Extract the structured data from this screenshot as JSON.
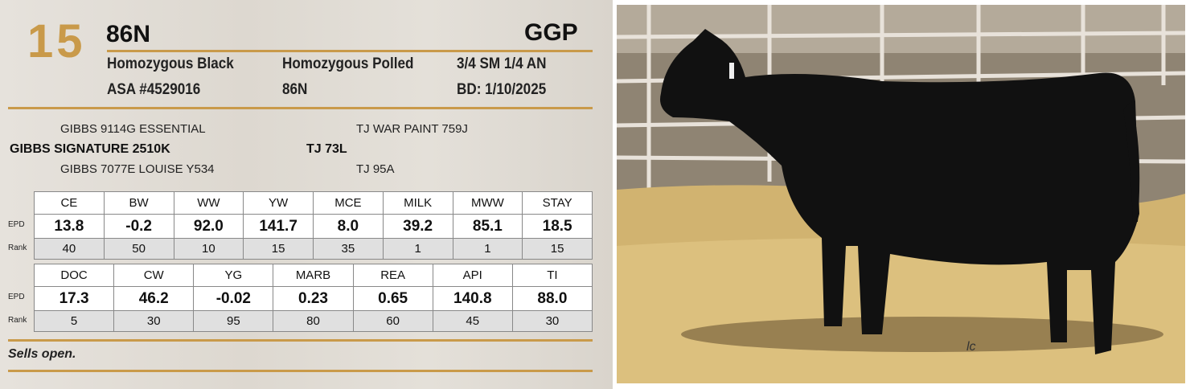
{
  "lot": "15",
  "name": "86N",
  "logo": "GGP",
  "details": [
    [
      "Homozygous Black",
      "Homozygous Polled",
      "3/4 SM 1/4 AN"
    ],
    [
      "ASA #4529016",
      "86N",
      "BD: 1/10/2025"
    ]
  ],
  "pedigree": {
    "sire": {
      "sire": "GIBBS 9114G ESSENTIAL",
      "name": "GIBBS SIGNATURE 2510K",
      "dam": "GIBBS 7077E LOUISE Y534"
    },
    "dam": {
      "sire": "TJ WAR PAINT 759J",
      "name": "TJ 73L",
      "dam": "TJ 95A"
    }
  },
  "epd_tables": [
    {
      "headers": [
        "CE",
        "BW",
        "WW",
        "YW",
        "MCE",
        "MILK",
        "MWW",
        "STAY"
      ],
      "row_labels": [
        "EPD",
        "Rank"
      ],
      "epd": [
        "13.8",
        "-0.2",
        "92.0",
        "141.7",
        "8.0",
        "39.2",
        "85.1",
        "18.5"
      ],
      "rank": [
        40,
        50,
        10,
        15,
        35,
        1,
        1,
        15
      ]
    },
    {
      "headers": [
        "DOC",
        "CW",
        "YG",
        "MARB",
        "REA",
        "API",
        "TI"
      ],
      "row_labels": [
        "EPD",
        "Rank"
      ],
      "epd": [
        "17.3",
        "46.2",
        "-0.02",
        "0.23",
        "0.65",
        "140.8",
        "88.0"
      ],
      "rank": [
        5,
        30,
        95,
        80,
        60,
        45,
        30
      ]
    }
  ],
  "note": "Sells open.",
  "photo_mark": "lc"
}
